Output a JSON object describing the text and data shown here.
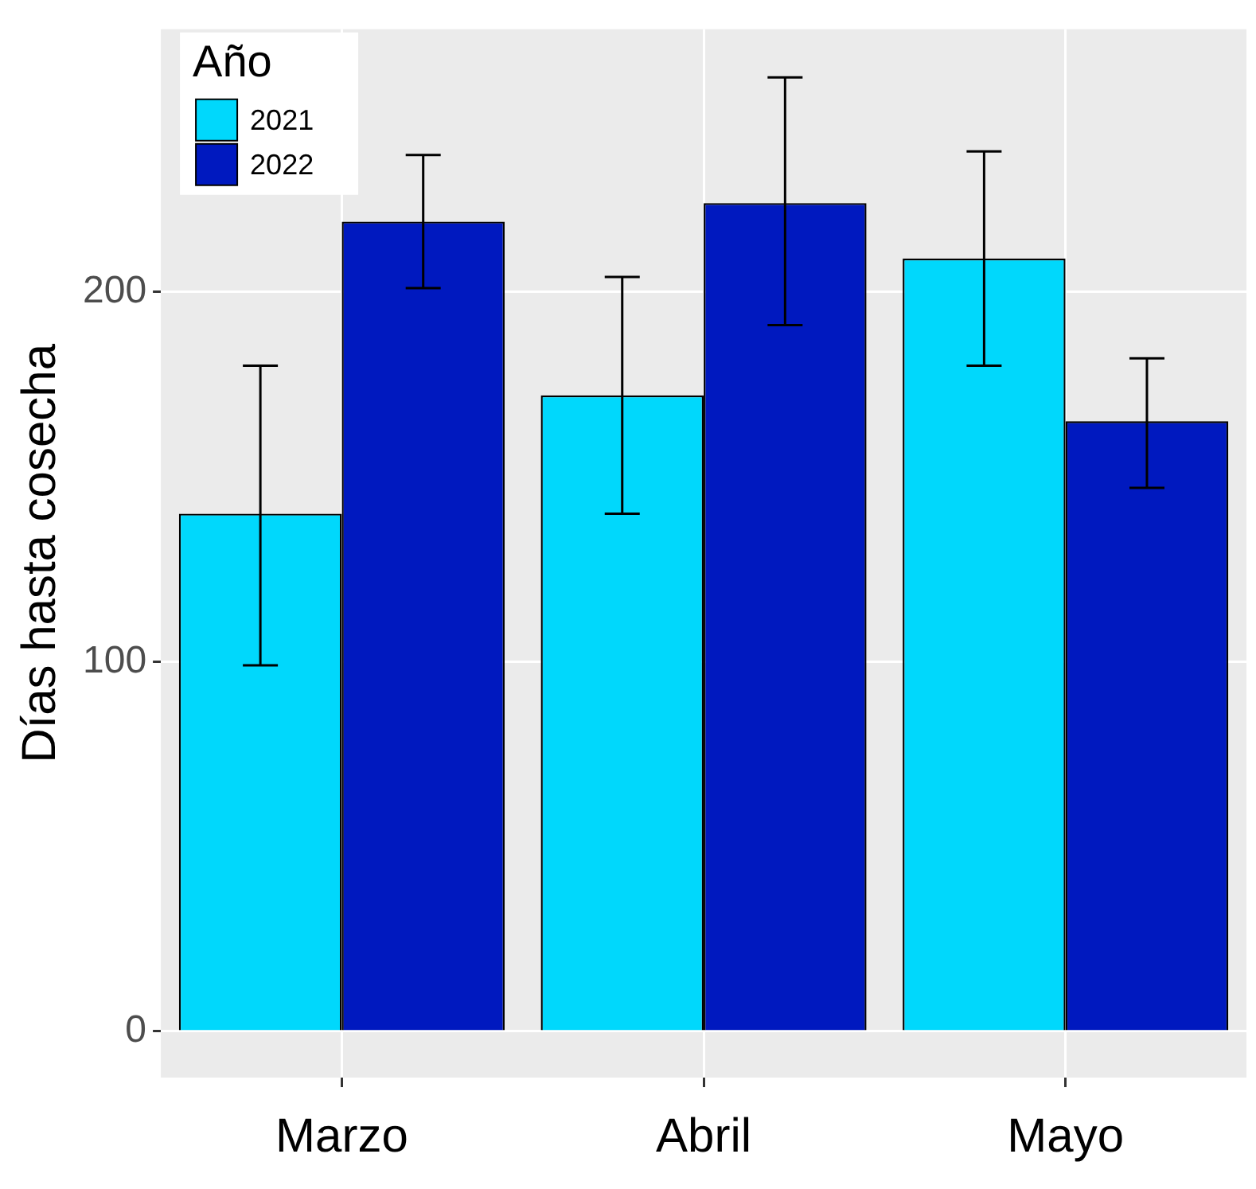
{
  "chart_data": {
    "type": "bar",
    "ylabel": "Días hasta cosecha",
    "legend_title": "Año",
    "categories": [
      "Marzo",
      "Abril",
      "Mayo"
    ],
    "series": [
      {
        "name": "2021",
        "color": "#00d8fc",
        "values": [
          140,
          172,
          209
        ],
        "errors": [
          [
            99,
            180
          ],
          [
            140,
            204
          ],
          [
            180,
            238
          ]
        ]
      },
      {
        "name": "2022",
        "color": "#0019bf",
        "values": [
          219,
          224,
          165
        ],
        "errors": [
          [
            201,
            237
          ],
          [
            191,
            258
          ],
          [
            147,
            182
          ]
        ]
      }
    ],
    "ylim": [
      -12.5,
      271
    ],
    "yticks": [
      0,
      100,
      200
    ],
    "grid": true,
    "legend": "top left"
  }
}
